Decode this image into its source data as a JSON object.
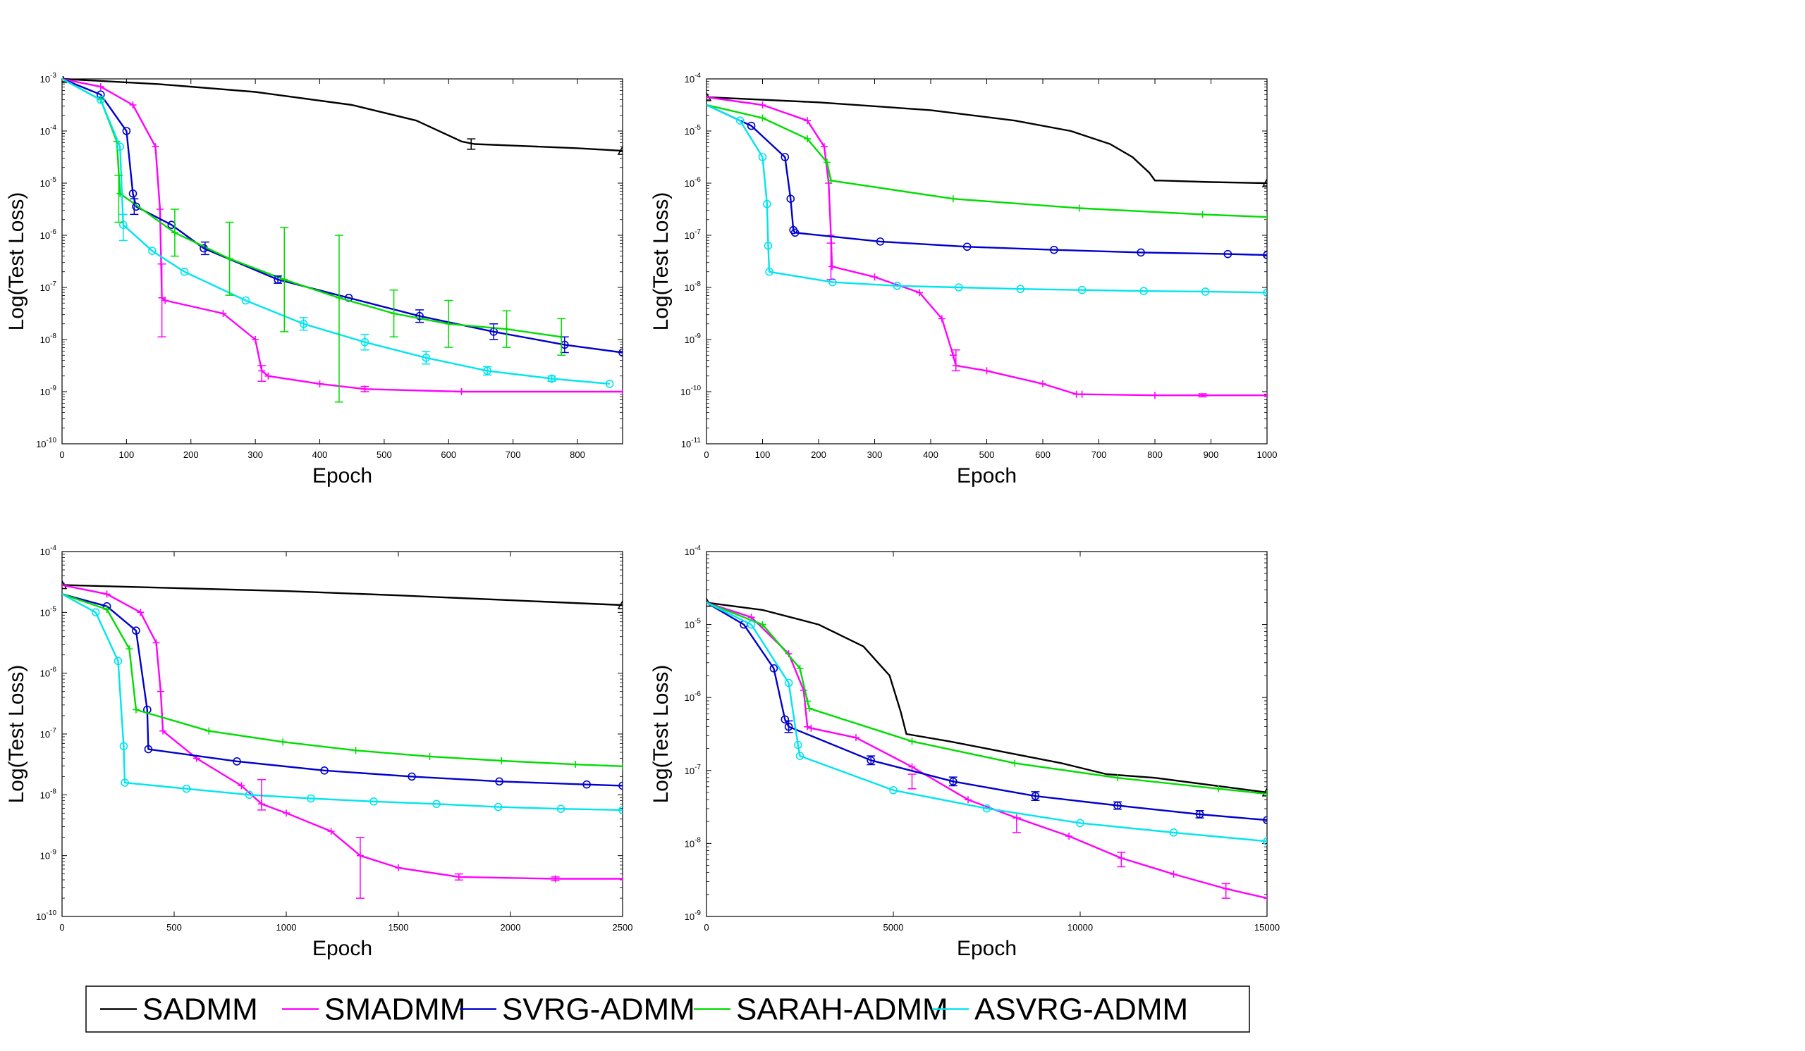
{
  "colors": {
    "SADMM": "#000000",
    "SMADMM": "#ff00ff",
    "SVRG-ADMM": "#0000cc",
    "SARAH-ADMM": "#00dd00",
    "ASVRG-ADMM": "#00e5ee"
  },
  "legend": [
    "SADMM",
    "SMADMM",
    "SVRG-ADMM",
    "SARAH-ADMM",
    "ASVRG-ADMM"
  ],
  "chart_data": [
    {
      "type": "line",
      "xlabel": "Epoch",
      "ylabel": "Log(Test Loss)",
      "xlim": [
        0,
        870
      ],
      "xticks": [
        0,
        100,
        200,
        300,
        400,
        500,
        600,
        700,
        800
      ],
      "ylog": [
        -10,
        -3
      ],
      "series": [
        {
          "name": "SADMM",
          "marker": "triangle",
          "x": [
            0,
            150,
            300,
            450,
            550,
            620,
            640,
            700,
            800,
            870
          ],
          "y": [
            -3.0,
            -3.1,
            -3.25,
            -3.5,
            -3.8,
            -4.2,
            -4.25,
            -4.28,
            -4.33,
            -4.38
          ]
        },
        {
          "name": "SMADMM",
          "marker": "plus",
          "x": [
            0,
            60,
            110,
            145,
            152,
            155,
            160,
            250,
            300,
            310,
            320,
            400,
            470,
            620,
            870
          ],
          "y": [
            -3.0,
            -3.15,
            -3.5,
            -4.3,
            -5.5,
            -7.2,
            -7.25,
            -7.5,
            -8.0,
            -8.6,
            -8.7,
            -8.85,
            -8.95,
            -9.0,
            -9.0
          ]
        },
        {
          "name": "SVRG-ADMM",
          "marker": "circle",
          "x": [
            0,
            60,
            100,
            110,
            115,
            170,
            220,
            335,
            445,
            555,
            670,
            780,
            870
          ],
          "y": [
            -3.0,
            -3.3,
            -4.0,
            -5.2,
            -5.45,
            -5.8,
            -6.25,
            -6.85,
            -7.2,
            -7.55,
            -7.85,
            -8.1,
            -8.25
          ]
        },
        {
          "name": "SARAH-ADMM",
          "marker": "plus",
          "x": [
            0,
            60,
            85,
            90,
            175,
            260,
            345,
            430,
            515,
            600,
            690,
            775
          ],
          "y": [
            -3.0,
            -3.4,
            -4.2,
            -5.2,
            -5.95,
            -6.45,
            -6.85,
            -7.2,
            -7.5,
            -7.7,
            -7.8,
            -7.95
          ]
        },
        {
          "name": "ASVRG-ADMM",
          "marker": "circle",
          "x": [
            0,
            60,
            90,
            95,
            140,
            190,
            285,
            375,
            470,
            565,
            660,
            760,
            850
          ],
          "y": [
            -3.0,
            -3.4,
            -4.3,
            -5.8,
            -6.3,
            -6.7,
            -7.25,
            -7.7,
            -8.05,
            -8.35,
            -8.6,
            -8.75,
            -8.85
          ]
        }
      ],
      "errorbars": [
        {
          "series": "SADMM",
          "x": 635,
          "y": -4.25,
          "err": 0.1
        },
        {
          "series": "SMADMM",
          "x": 155,
          "y": -7.25,
          "err": 0.7
        },
        {
          "series": "SMADMM",
          "x": 310,
          "y": -8.65,
          "err": 0.15
        },
        {
          "series": "SMADMM",
          "x": 470,
          "y": -8.95,
          "err": 0.05
        },
        {
          "series": "SVRG-ADMM",
          "x": 112,
          "y": -5.45,
          "err": 0.15
        },
        {
          "series": "SVRG-ADMM",
          "x": 222,
          "y": -6.25,
          "err": 0.12
        },
        {
          "series": "SVRG-ADMM",
          "x": 335,
          "y": -6.85,
          "err": 0.07
        },
        {
          "series": "SVRG-ADMM",
          "x": 555,
          "y": -7.55,
          "err": 0.12
        },
        {
          "series": "SVRG-ADMM",
          "x": 670,
          "y": -7.85,
          "err": 0.15
        },
        {
          "series": "SVRG-ADMM",
          "x": 780,
          "y": -8.1,
          "err": 0.15
        },
        {
          "series": "SARAH-ADMM",
          "x": 88,
          "y": -5.3,
          "err": 0.45
        },
        {
          "series": "SARAH-ADMM",
          "x": 175,
          "y": -5.95,
          "err": 0.45
        },
        {
          "series": "SARAH-ADMM",
          "x": 260,
          "y": -6.45,
          "err": 0.7
        },
        {
          "series": "SARAH-ADMM",
          "x": 345,
          "y": -6.85,
          "err": 1.0
        },
        {
          "series": "SARAH-ADMM",
          "x": 430,
          "y": -7.6,
          "err": 1.6
        },
        {
          "series": "SARAH-ADMM",
          "x": 515,
          "y": -7.5,
          "err": 0.45
        },
        {
          "series": "SARAH-ADMM",
          "x": 600,
          "y": -7.7,
          "err": 0.45
        },
        {
          "series": "SARAH-ADMM",
          "x": 690,
          "y": -7.8,
          "err": 0.35
        },
        {
          "series": "SARAH-ADMM",
          "x": 775,
          "y": -7.95,
          "err": 0.35
        },
        {
          "series": "ASVRG-ADMM",
          "x": 95,
          "y": -5.85,
          "err": 0.25
        },
        {
          "series": "ASVRG-ADMM",
          "x": 375,
          "y": -7.7,
          "err": 0.12
        },
        {
          "series": "ASVRG-ADMM",
          "x": 470,
          "y": -8.05,
          "err": 0.15
        },
        {
          "series": "ASVRG-ADMM",
          "x": 565,
          "y": -8.35,
          "err": 0.12
        },
        {
          "series": "ASVRG-ADMM",
          "x": 660,
          "y": -8.6,
          "err": 0.08
        },
        {
          "series": "ASVRG-ADMM",
          "x": 760,
          "y": -8.75,
          "err": 0.05
        }
      ]
    },
    {
      "type": "line",
      "xlabel": "Epoch",
      "ylabel": "Log(Test Loss)",
      "xlim": [
        0,
        1000
      ],
      "xticks": [
        0,
        100,
        200,
        300,
        400,
        500,
        600,
        700,
        800,
        900,
        1000
      ],
      "ylog": [
        -11,
        -4
      ],
      "series": [
        {
          "name": "SADMM",
          "marker": "triangle",
          "x": [
            0,
            200,
            400,
            550,
            650,
            720,
            760,
            790,
            800,
            810,
            900,
            1000
          ],
          "y": [
            -4.35,
            -4.45,
            -4.6,
            -4.8,
            -5.0,
            -5.25,
            -5.5,
            -5.8,
            -5.95,
            -5.95,
            -5.98,
            -6.0
          ]
        },
        {
          "name": "SMADMM",
          "marker": "plus",
          "x": [
            0,
            100,
            180,
            210,
            218,
            222,
            224,
            300,
            380,
            420,
            440,
            445,
            500,
            600,
            660,
            670,
            800,
            1000
          ],
          "y": [
            -4.35,
            -4.5,
            -4.8,
            -5.3,
            -6.0,
            -7.0,
            -7.6,
            -7.8,
            -8.1,
            -8.6,
            -9.3,
            -9.5,
            -9.6,
            -9.85,
            -10.05,
            -10.05,
            -10.07,
            -10.07
          ]
        },
        {
          "name": "SVRG-ADMM",
          "marker": "circle",
          "x": [
            0,
            80,
            140,
            150,
            155,
            158,
            310,
            465,
            620,
            775,
            930,
            1000
          ],
          "y": [
            -4.5,
            -4.9,
            -5.5,
            -6.3,
            -6.9,
            -6.95,
            -7.12,
            -7.22,
            -7.28,
            -7.33,
            -7.36,
            -7.38
          ]
        },
        {
          "name": "SARAH-ADMM",
          "marker": "plus",
          "x": [
            0,
            100,
            180,
            215,
            222,
            440,
            665,
            885,
            1000
          ],
          "y": [
            -4.5,
            -4.75,
            -5.15,
            -5.6,
            -5.95,
            -6.3,
            -6.48,
            -6.6,
            -6.65
          ]
        },
        {
          "name": "ASVRG-ADMM",
          "marker": "circle",
          "x": [
            0,
            60,
            100,
            108,
            110,
            112,
            225,
            340,
            450,
            560,
            670,
            780,
            890,
            1000
          ],
          "y": [
            -4.5,
            -4.8,
            -5.5,
            -6.4,
            -7.2,
            -7.7,
            -7.9,
            -7.97,
            -8.0,
            -8.03,
            -8.05,
            -8.07,
            -8.08,
            -8.1
          ]
        }
      ],
      "errorbars": [
        {
          "series": "SMADMM",
          "x": 222,
          "y": -7.5,
          "err": 0.35
        },
        {
          "series": "SMADMM",
          "x": 445,
          "y": -9.4,
          "err": 0.2
        },
        {
          "series": "SMADMM",
          "x": 885,
          "y": -10.07,
          "err": 0.03
        }
      ]
    },
    {
      "type": "line",
      "xlabel": "Epoch",
      "ylabel": "Log(Test Loss)",
      "xlim": [
        0,
        2500
      ],
      "xticks": [
        0,
        500,
        1000,
        1500,
        2000,
        2500
      ],
      "ylog": [
        -10,
        -4
      ],
      "series": [
        {
          "name": "SADMM",
          "marker": "triangle",
          "x": [
            0,
            500,
            1000,
            1500,
            2000,
            2500
          ],
          "y": [
            -4.55,
            -4.6,
            -4.65,
            -4.72,
            -4.8,
            -4.88
          ]
        },
        {
          "name": "SMADMM",
          "marker": "plus",
          "x": [
            0,
            200,
            350,
            420,
            440,
            450,
            600,
            800,
            890,
            1000,
            1200,
            1330,
            1500,
            1770,
            2200,
            2500
          ],
          "y": [
            -4.55,
            -4.7,
            -5.0,
            -5.5,
            -6.3,
            -6.95,
            -7.4,
            -7.85,
            -8.15,
            -8.3,
            -8.6,
            -9.0,
            -9.2,
            -9.35,
            -9.38,
            -9.38
          ]
        },
        {
          "name": "SVRG-ADMM",
          "marker": "circle",
          "x": [
            0,
            200,
            330,
            380,
            385,
            780,
            1170,
            1560,
            1950,
            2340,
            2500
          ],
          "y": [
            -4.7,
            -4.9,
            -5.3,
            -6.6,
            -7.25,
            -7.45,
            -7.6,
            -7.7,
            -7.78,
            -7.83,
            -7.85
          ]
        },
        {
          "name": "SARAH-ADMM",
          "marker": "plus",
          "x": [
            0,
            200,
            300,
            330,
            655,
            985,
            1310,
            1640,
            1960,
            2290,
            2500
          ],
          "y": [
            -4.7,
            -4.95,
            -5.6,
            -6.6,
            -6.95,
            -7.13,
            -7.27,
            -7.37,
            -7.44,
            -7.5,
            -7.53
          ]
        },
        {
          "name": "ASVRG-ADMM",
          "marker": "circle",
          "x": [
            0,
            150,
            250,
            275,
            280,
            555,
            835,
            1110,
            1390,
            1670,
            1945,
            2225,
            2500
          ],
          "y": [
            -4.7,
            -5.0,
            -5.8,
            -7.2,
            -7.8,
            -7.9,
            -8.0,
            -8.06,
            -8.11,
            -8.15,
            -8.2,
            -8.23,
            -8.25
          ]
        }
      ],
      "errorbars": [
        {
          "series": "SMADMM",
          "x": 890,
          "y": -8.0,
          "err": 0.25
        },
        {
          "series": "SMADMM",
          "x": 1330,
          "y": -9.2,
          "err": 0.5
        },
        {
          "series": "SMADMM",
          "x": 1770,
          "y": -9.35,
          "err": 0.05
        },
        {
          "series": "SMADMM",
          "x": 2200,
          "y": -9.38,
          "err": 0.03
        }
      ]
    },
    {
      "type": "line",
      "xlabel": "Epoch",
      "ylabel": "Log(Test Loss)",
      "xlim": [
        0,
        15000
      ],
      "xticks": [
        0,
        5000,
        10000,
        15000
      ],
      "ylog": [
        -9,
        -4
      ],
      "series": [
        {
          "name": "SADMM",
          "marker": "triangle",
          "x": [
            0,
            1500,
            3000,
            4200,
            4900,
            5200,
            5350,
            6500,
            8000,
            9500,
            10700,
            12000,
            15000
          ],
          "y": [
            -4.7,
            -4.8,
            -5.0,
            -5.3,
            -5.7,
            -6.2,
            -6.5,
            -6.6,
            -6.75,
            -6.9,
            -7.05,
            -7.1,
            -7.3
          ]
        },
        {
          "name": "SMADMM",
          "marker": "plus",
          "x": [
            0,
            1200,
            2200,
            2600,
            2700,
            2800,
            4000,
            5500,
            7000,
            8300,
            9700,
            11100,
            12500,
            13900,
            15000
          ],
          "y": [
            -4.7,
            -4.9,
            -5.4,
            -5.9,
            -6.4,
            -6.42,
            -6.55,
            -6.95,
            -7.4,
            -7.65,
            -7.9,
            -8.2,
            -8.42,
            -8.62,
            -8.75
          ]
        },
        {
          "name": "SVRG-ADMM",
          "marker": "circle",
          "x": [
            0,
            1000,
            1800,
            2100,
            2200,
            4400,
            6600,
            8800,
            11000,
            13200,
            15000
          ],
          "y": [
            -4.7,
            -5.0,
            -5.6,
            -6.3,
            -6.4,
            -6.86,
            -7.15,
            -7.35,
            -7.48,
            -7.6,
            -7.68
          ]
        },
        {
          "name": "SARAH-ADMM",
          "marker": "plus",
          "x": [
            0,
            1500,
            2500,
            2700,
            2750,
            5500,
            8250,
            11000,
            13700,
            15000
          ],
          "y": [
            -4.7,
            -5.0,
            -5.6,
            -6.05,
            -6.15,
            -6.6,
            -6.9,
            -7.1,
            -7.25,
            -7.32
          ]
        },
        {
          "name": "ASVRG-ADMM",
          "marker": "circle",
          "x": [
            0,
            1200,
            2200,
            2450,
            2500,
            5000,
            7500,
            10000,
            12500,
            15000
          ],
          "y": [
            -4.7,
            -5.0,
            -5.8,
            -6.65,
            -6.8,
            -7.27,
            -7.52,
            -7.72,
            -7.85,
            -7.97
          ]
        }
      ],
      "errorbars": [
        {
          "series": "SMADMM",
          "x": 5500,
          "y": -7.15,
          "err": 0.1
        },
        {
          "series": "SMADMM",
          "x": 8300,
          "y": -7.75,
          "err": 0.1
        },
        {
          "series": "SMADMM",
          "x": 11100,
          "y": -8.22,
          "err": 0.1
        },
        {
          "series": "SMADMM",
          "x": 13900,
          "y": -8.65,
          "err": 0.1
        },
        {
          "series": "SVRG-ADMM",
          "x": 2200,
          "y": -6.4,
          "err": 0.08
        },
        {
          "series": "SVRG-ADMM",
          "x": 4400,
          "y": -6.86,
          "err": 0.06
        },
        {
          "series": "SVRG-ADMM",
          "x": 6600,
          "y": -7.15,
          "err": 0.06
        },
        {
          "series": "SVRG-ADMM",
          "x": 8800,
          "y": -7.35,
          "err": 0.06
        },
        {
          "series": "SVRG-ADMM",
          "x": 11000,
          "y": -7.48,
          "err": 0.05
        },
        {
          "series": "SVRG-ADMM",
          "x": 13200,
          "y": -7.6,
          "err": 0.05
        }
      ]
    }
  ]
}
